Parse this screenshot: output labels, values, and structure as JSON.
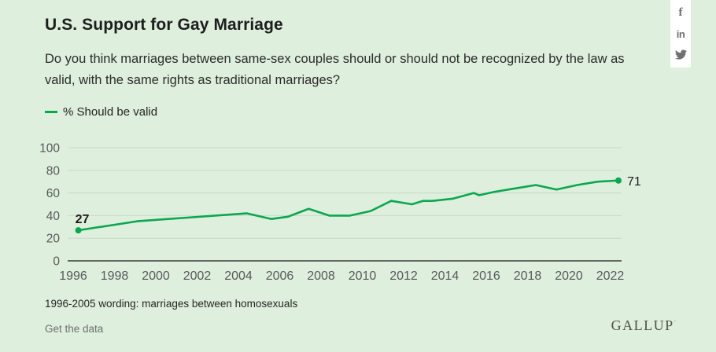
{
  "page": {
    "title": "U.S. Support for Gay Marriage",
    "subtitle_line1": "Do you think marriages between same-sex couples should or should not be recognized by the law as",
    "subtitle_line2": "valid, with the same rights as traditional marriages?",
    "footnote": "1996-2005 wording: marriages between homosexuals",
    "get_data_label": "Get the data",
    "brand": "GALLUP"
  },
  "legend": {
    "label": "% Should be valid"
  },
  "social": {
    "facebook_glyph": "f",
    "linkedin_glyph": "in",
    "twitter_icon": "twitter-bird"
  },
  "colors": {
    "background": "#deefdd",
    "line": "#0ba750",
    "grid": "#c9d8c7",
    "axis": "#3c3c3c",
    "tick_text": "#57595b",
    "point_label_text": "#1d1d1d",
    "social_icon": "#6e7170"
  },
  "chart_data": {
    "type": "line",
    "title": "U.S. Support for Gay Marriage",
    "series": [
      {
        "name": "% Should be valid",
        "color": "#0ba750",
        "points": [
          [
            1996.25,
            27
          ],
          [
            1999.1,
            35
          ],
          [
            2004.4,
            42
          ],
          [
            2005.6,
            37
          ],
          [
            2006.4,
            39
          ],
          [
            2007.4,
            46
          ],
          [
            2008.4,
            40
          ],
          [
            2009.4,
            40
          ],
          [
            2010.4,
            44
          ],
          [
            2011.4,
            53
          ],
          [
            2012.4,
            50
          ],
          [
            2012.95,
            53
          ],
          [
            2013.4,
            53
          ],
          [
            2014.4,
            55
          ],
          [
            2015.4,
            60
          ],
          [
            2015.65,
            58
          ],
          [
            2016.4,
            61
          ],
          [
            2017.4,
            64
          ],
          [
            2018.4,
            67
          ],
          [
            2019.4,
            63
          ],
          [
            2020.4,
            67
          ],
          [
            2021.4,
            70
          ],
          [
            2022.4,
            71
          ]
        ]
      }
    ],
    "x_ticks": [
      1996,
      1998,
      2000,
      2002,
      2004,
      2006,
      2008,
      2010,
      2012,
      2014,
      2016,
      2018,
      2020,
      2022
    ],
    "y_ticks": [
      0,
      20,
      40,
      60,
      80,
      100
    ],
    "xlim": [
      1995.7,
      2022.9
    ],
    "ylim": [
      0,
      100
    ],
    "grid": true,
    "legend_position": "top-left",
    "first_point_label": "27",
    "last_point_label": "71",
    "xlabel": "",
    "ylabel": ""
  }
}
